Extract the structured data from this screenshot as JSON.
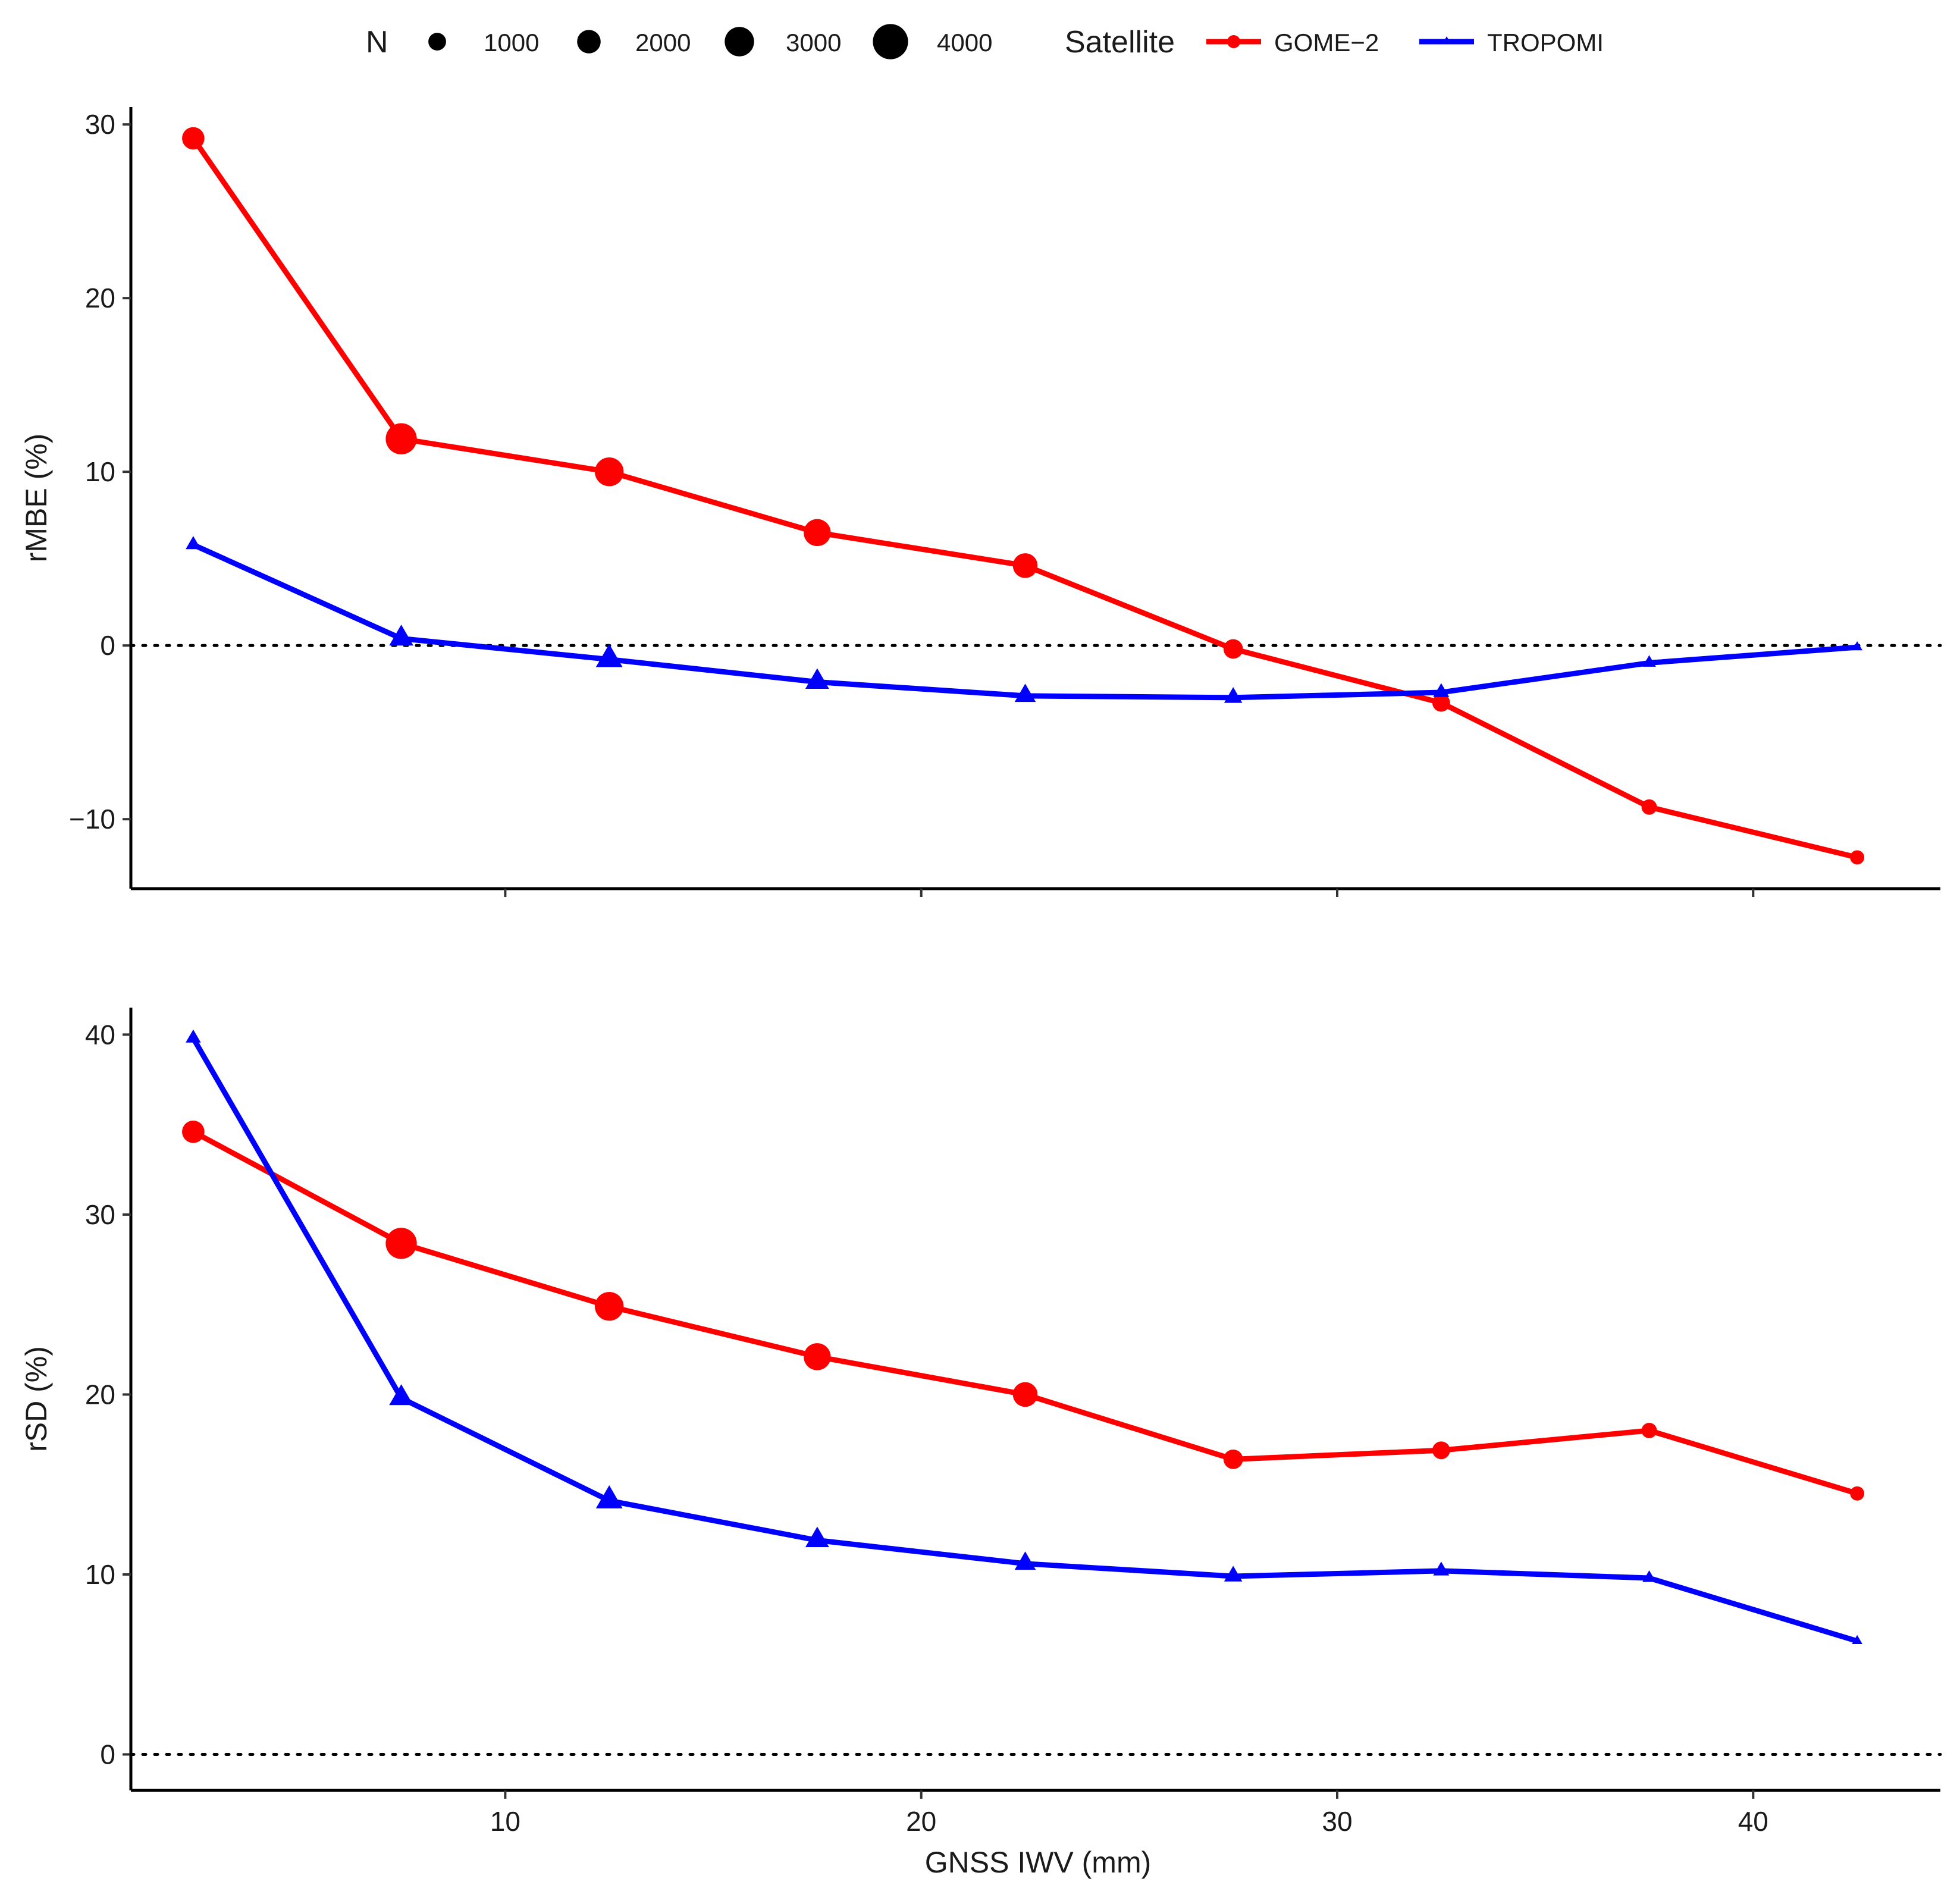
{
  "chart_data": {
    "type": "line",
    "xlabel": "GNSS IWV (mm)",
    "x": [
      2.5,
      7.5,
      12.5,
      17.5,
      22.5,
      27.5,
      32.5,
      37.5,
      42.5
    ],
    "xlim": [
      1,
      44.5
    ],
    "xticks": [
      10,
      20,
      30,
      40
    ],
    "legend": {
      "position": "top",
      "size_title": "N",
      "size_items": [
        {
          "label": "1000",
          "value": 1000
        },
        {
          "label": "2000",
          "value": 2000
        },
        {
          "label": "3000",
          "value": 3000
        },
        {
          "label": "4000",
          "value": 4000
        }
      ],
      "color_title": "Satellite",
      "color_items": [
        {
          "label": "GOME−2",
          "color": "#ff0000",
          "shape": "circle"
        },
        {
          "label": "TROPOMI",
          "color": "#0000ff",
          "shape": "triangle"
        }
      ]
    },
    "panels": [
      {
        "ylabel": "rMBE (%)",
        "ylim": [
          -14,
          31
        ],
        "yticks": [
          -10,
          0,
          10,
          20,
          30
        ],
        "ytick_labels": [
          "−10",
          "0",
          "10",
          "20",
          "30"
        ],
        "reference_line": 0,
        "series": [
          {
            "name": "GOME−2",
            "color": "#ff0000",
            "shape": "circle",
            "values": [
              29.2,
              11.9,
              10.0,
              6.5,
              4.6,
              -0.2,
              -3.3,
              -9.3,
              -12.2
            ],
            "n": [
              1800,
              3300,
              2900,
              2600,
              2200,
              1300,
              1000,
              600,
              400
            ]
          },
          {
            "name": "TROPOMI",
            "color": "#0000ff",
            "shape": "triangle",
            "values": [
              5.8,
              0.4,
              -0.8,
              -2.1,
              -2.9,
              -3.0,
              -2.7,
              -1.0,
              -0.1
            ],
            "n": [
              1600,
              3700,
              4300,
              3600,
              3000,
              2300,
              1800,
              1200,
              500
            ]
          }
        ]
      },
      {
        "ylabel": "rSD (%)",
        "ylim": [
          -2,
          41.5
        ],
        "yticks": [
          0,
          10,
          20,
          30,
          40
        ],
        "ytick_labels": [
          "0",
          "10",
          "20",
          "30",
          "40"
        ],
        "reference_line": 0,
        "series": [
          {
            "name": "GOME−2",
            "color": "#ff0000",
            "shape": "circle",
            "values": [
              34.6,
              28.4,
              24.9,
              22.1,
              20.0,
              16.4,
              16.9,
              18.0,
              14.5
            ],
            "n": [
              1800,
              3300,
              2900,
              2600,
              2200,
              1300,
              1000,
              600,
              400
            ]
          },
          {
            "name": "TROPOMI",
            "color": "#0000ff",
            "shape": "triangle",
            "values": [
              39.8,
              19.8,
              14.1,
              11.9,
              10.6,
              9.9,
              10.2,
              9.8,
              6.3
            ],
            "n": [
              1600,
              3700,
              4300,
              3600,
              3000,
              2300,
              1800,
              1200,
              500
            ]
          }
        ]
      }
    ]
  }
}
